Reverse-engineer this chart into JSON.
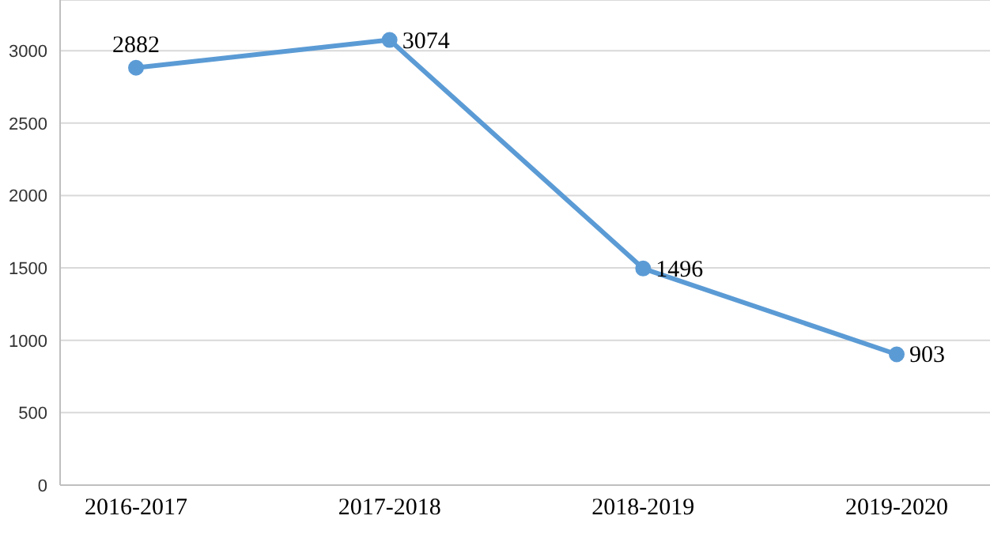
{
  "chart_data": {
    "type": "line",
    "categories": [
      "2016-2017",
      "2017-2018",
      "2018-2019",
      "2019-2020"
    ],
    "series": [
      {
        "color": "#5b9bd5",
        "values": [
          2882,
          3074,
          1496,
          903
        ]
      }
    ],
    "ylim": [
      0,
      3350
    ],
    "yticks": [
      0,
      500,
      1000,
      1500,
      2000,
      2500,
      3000
    ],
    "grid": "y",
    "marker": "circle",
    "line_style": "solid",
    "data_labels": true,
    "legend": false
  }
}
